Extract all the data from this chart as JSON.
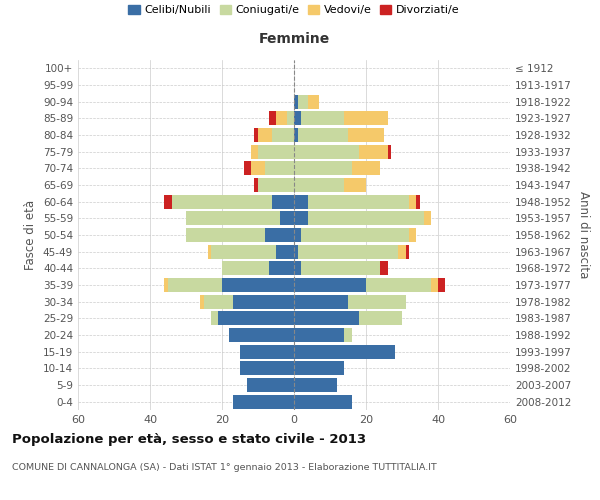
{
  "age_groups": [
    "0-4",
    "5-9",
    "10-14",
    "15-19",
    "20-24",
    "25-29",
    "30-34",
    "35-39",
    "40-44",
    "45-49",
    "50-54",
    "55-59",
    "60-64",
    "65-69",
    "70-74",
    "75-79",
    "80-84",
    "85-89",
    "90-94",
    "95-99",
    "100+"
  ],
  "birth_years": [
    "2008-2012",
    "2003-2007",
    "1998-2002",
    "1993-1997",
    "1988-1992",
    "1983-1987",
    "1978-1982",
    "1973-1977",
    "1968-1972",
    "1963-1967",
    "1958-1962",
    "1953-1957",
    "1948-1952",
    "1943-1947",
    "1938-1942",
    "1933-1937",
    "1928-1932",
    "1923-1927",
    "1918-1922",
    "1913-1917",
    "≤ 1912"
  ],
  "male": {
    "celibi": [
      17,
      13,
      15,
      15,
      18,
      21,
      17,
      20,
      7,
      5,
      8,
      4,
      6,
      0,
      0,
      0,
      0,
      0,
      0,
      0,
      0
    ],
    "coniugati": [
      0,
      0,
      0,
      0,
      0,
      2,
      8,
      15,
      13,
      18,
      22,
      26,
      28,
      10,
      8,
      10,
      6,
      2,
      0,
      0,
      0
    ],
    "vedovi": [
      0,
      0,
      0,
      0,
      0,
      0,
      1,
      1,
      0,
      1,
      0,
      0,
      0,
      0,
      4,
      2,
      4,
      3,
      0,
      0,
      0
    ],
    "divorziati": [
      0,
      0,
      0,
      0,
      0,
      0,
      0,
      0,
      0,
      0,
      0,
      0,
      2,
      1,
      2,
      0,
      1,
      2,
      0,
      0,
      0
    ]
  },
  "female": {
    "nubili": [
      16,
      12,
      14,
      28,
      14,
      18,
      15,
      20,
      2,
      1,
      2,
      4,
      4,
      0,
      0,
      0,
      1,
      2,
      1,
      0,
      0
    ],
    "coniugate": [
      0,
      0,
      0,
      0,
      2,
      12,
      16,
      18,
      22,
      28,
      30,
      32,
      28,
      14,
      16,
      18,
      14,
      12,
      3,
      0,
      0
    ],
    "vedove": [
      0,
      0,
      0,
      0,
      0,
      0,
      0,
      2,
      0,
      2,
      2,
      2,
      2,
      6,
      8,
      8,
      10,
      12,
      3,
      0,
      0
    ],
    "divorziate": [
      0,
      0,
      0,
      0,
      0,
      0,
      0,
      2,
      2,
      1,
      0,
      0,
      1,
      0,
      0,
      1,
      0,
      0,
      0,
      0,
      0
    ]
  },
  "colors": {
    "celibi": "#3a6ea5",
    "coniugati": "#c8d9a0",
    "vedovi": "#f5c96a",
    "divorziati": "#cc2222"
  },
  "xlim": 60,
  "title": "Popolazione per età, sesso e stato civile - 2013",
  "subtitle": "COMUNE DI CANNALONGA (SA) - Dati ISTAT 1° gennaio 2013 - Elaborazione TUTTITALIA.IT",
  "legend_labels": [
    "Celibi/Nubili",
    "Coniugati/e",
    "Vedovi/e",
    "Divorziati/e"
  ],
  "xlabel_right": "Femmine",
  "ylabel_left": "Fasce di età",
  "ylabel_right": "Anni di nascita"
}
